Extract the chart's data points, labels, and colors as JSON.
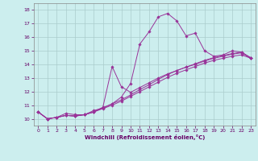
{
  "title": "",
  "xlabel": "Windchill (Refroidissement éolien,°C)",
  "bg_color": "#cceeee",
  "line_color": "#993399",
  "grid_color": "#aacccc",
  "xlim": [
    -0.5,
    23.5
  ],
  "ylim": [
    9.5,
    18.5
  ],
  "xticks": [
    0,
    1,
    2,
    3,
    4,
    5,
    6,
    7,
    8,
    9,
    10,
    11,
    12,
    13,
    14,
    15,
    16,
    17,
    18,
    19,
    20,
    21,
    22,
    23
  ],
  "yticks": [
    10,
    11,
    12,
    13,
    14,
    15,
    16,
    17,
    18
  ],
  "lines": [
    {
      "x": [
        0,
        1,
        2,
        3,
        4,
        5,
        6,
        7,
        8,
        9,
        10,
        11,
        12,
        13,
        14,
        15,
        16,
        17,
        18,
        19,
        20,
        21,
        22,
        23
      ],
      "y": [
        10.5,
        10.0,
        10.1,
        10.4,
        10.3,
        10.3,
        10.6,
        10.8,
        11.1,
        11.6,
        12.6,
        15.5,
        16.4,
        17.5,
        17.75,
        17.2,
        16.1,
        16.3,
        15.0,
        14.6,
        14.7,
        15.0,
        14.9,
        14.5
      ]
    },
    {
      "x": [
        0,
        1,
        2,
        3,
        4,
        5,
        6,
        7,
        8,
        9,
        10,
        11,
        12,
        13,
        14,
        15,
        16,
        17,
        18,
        19,
        20,
        21,
        22,
        23
      ],
      "y": [
        10.5,
        10.0,
        10.1,
        10.25,
        10.2,
        10.3,
        10.5,
        10.75,
        11.0,
        11.3,
        11.65,
        12.0,
        12.35,
        12.7,
        13.05,
        13.35,
        13.6,
        13.85,
        14.1,
        14.3,
        14.45,
        14.6,
        14.7,
        14.45
      ]
    },
    {
      "x": [
        0,
        1,
        2,
        3,
        4,
        5,
        6,
        7,
        8,
        9,
        10,
        11,
        12,
        13,
        14,
        15,
        16,
        17,
        18,
        19,
        20,
        21,
        22,
        23
      ],
      "y": [
        10.5,
        10.0,
        10.1,
        10.25,
        10.2,
        10.3,
        10.5,
        10.8,
        11.1,
        11.4,
        11.75,
        12.15,
        12.5,
        12.9,
        13.25,
        13.55,
        13.8,
        14.05,
        14.3,
        14.5,
        14.65,
        14.8,
        14.9,
        14.45
      ]
    },
    {
      "x": [
        0,
        1,
        2,
        3,
        4,
        5,
        6,
        7,
        8,
        9,
        10,
        11,
        12,
        13,
        14,
        15,
        16,
        17,
        18,
        19,
        20,
        21,
        22,
        23
      ],
      "y": [
        10.5,
        10.0,
        10.1,
        10.25,
        10.2,
        10.3,
        10.5,
        10.85,
        13.85,
        12.35,
        11.95,
        12.3,
        12.65,
        13.0,
        13.3,
        13.55,
        13.8,
        14.0,
        14.25,
        14.45,
        14.6,
        14.75,
        14.85,
        14.45
      ]
    }
  ]
}
